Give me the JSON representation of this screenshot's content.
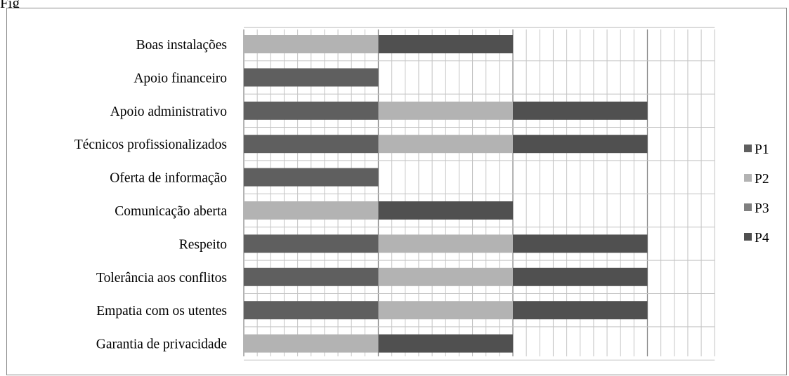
{
  "top_text": "Fig",
  "chart_data": {
    "type": "bar",
    "orientation": "horizontal",
    "stacked": true,
    "categories": [
      "Boas instalações",
      "Apoio financeiro",
      "Apoio administrativo",
      "Técnicos profissionalizados",
      "Oferta de informação",
      "Comunicação aberta",
      "Respeito",
      "Tolerância aos conflitos",
      "Empatia com os utentes",
      "Garantia de privacidade"
    ],
    "series": [
      {
        "name": "P1",
        "color": "#5f5f5f",
        "values": [
          0,
          1,
          1,
          1,
          1,
          0,
          1,
          1,
          1,
          0
        ]
      },
      {
        "name": "P2",
        "color": "#b3b3b3",
        "values": [
          1,
          0,
          1,
          1,
          0,
          1,
          1,
          1,
          1,
          1
        ]
      },
      {
        "name": "P3",
        "color": "#7f7f7f",
        "values": [
          0,
          0,
          0,
          0,
          0,
          0,
          0,
          0,
          0,
          0
        ]
      },
      {
        "name": "P4",
        "color": "#505050",
        "values": [
          1,
          0,
          1,
          1,
          0,
          1,
          1,
          1,
          1,
          1
        ]
      }
    ],
    "xlim": [
      0,
      3.5
    ],
    "grid": true,
    "legend_position": "right"
  }
}
